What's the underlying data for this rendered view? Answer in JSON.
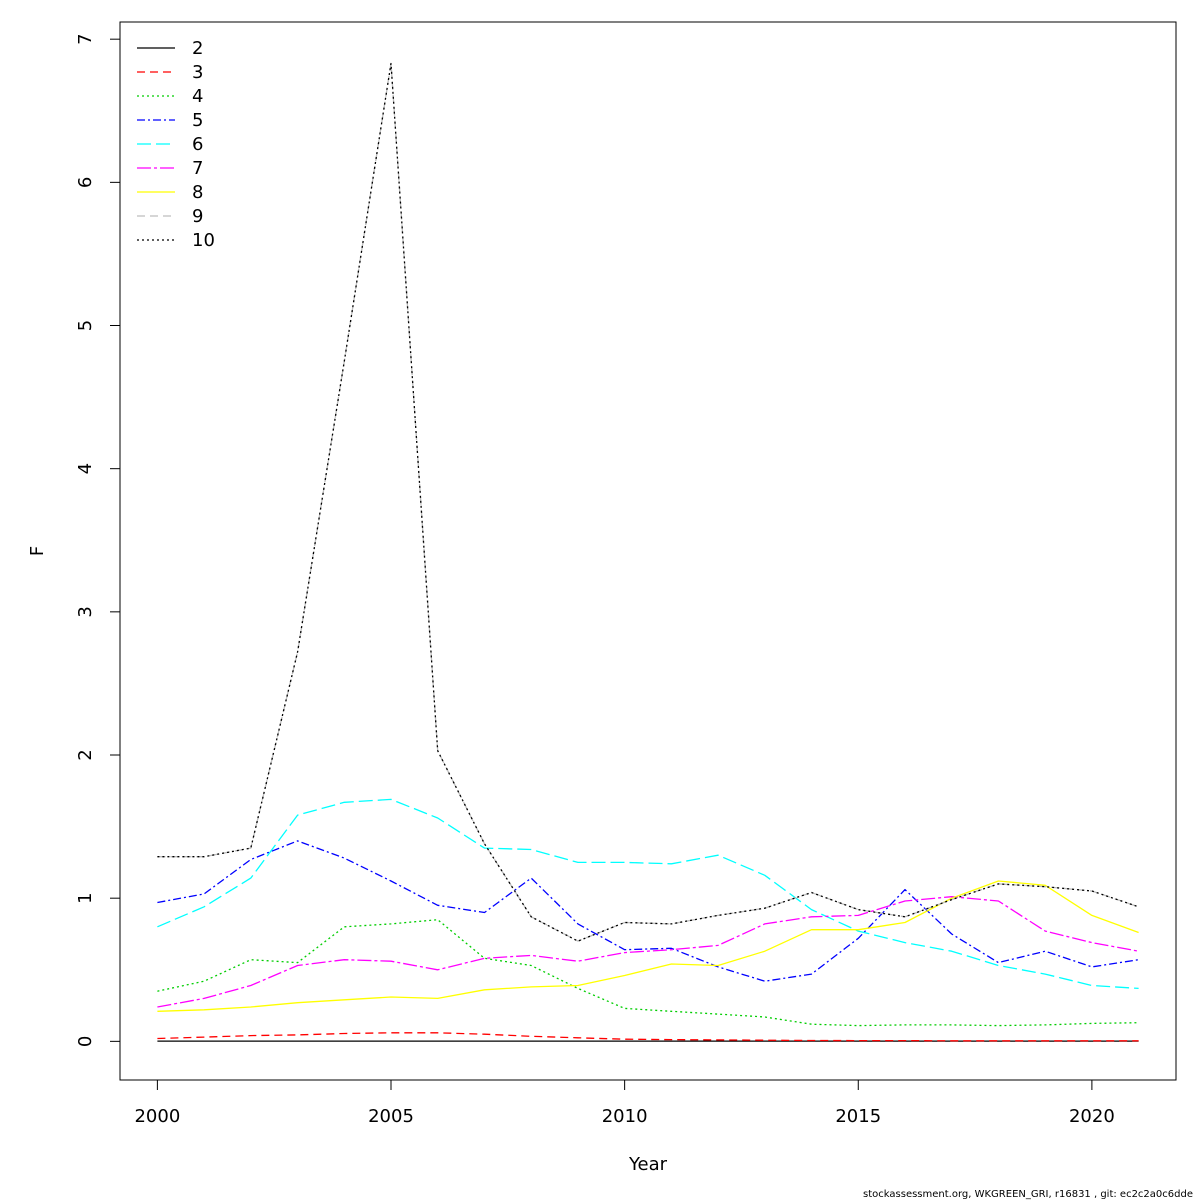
{
  "chart_data": {
    "type": "line",
    "xlabel": "Year",
    "ylabel": "F",
    "xlim": [
      1999.2,
      2021.8
    ],
    "ylim": [
      -0.27,
      7.12
    ],
    "x_ticks": [
      2000,
      2005,
      2010,
      2015,
      2020
    ],
    "y_ticks": [
      0,
      1,
      2,
      3,
      4,
      5,
      6,
      7
    ],
    "grid": false,
    "legend_position": "top-left",
    "x": [
      2000,
      2001,
      2002,
      2003,
      2004,
      2005,
      2006,
      2007,
      2008,
      2009,
      2010,
      2011,
      2012,
      2013,
      2014,
      2015,
      2016,
      2017,
      2018,
      2019,
      2020,
      2021
    ],
    "series": [
      {
        "name": "2",
        "color": "#000000",
        "dash": "",
        "values": [
          0.002,
          0.002,
          0.002,
          0.002,
          0.002,
          0.002,
          0.002,
          0.002,
          0.002,
          0.002,
          0.002,
          0.002,
          0.002,
          0.002,
          0.002,
          0.002,
          0.002,
          0.002,
          0.002,
          0.002,
          0.002,
          0.002
        ]
      },
      {
        "name": "3",
        "color": "#ff0000",
        "dash": "8,5",
        "values": [
          0.02,
          0.03,
          0.04,
          0.045,
          0.055,
          0.06,
          0.06,
          0.05,
          0.035,
          0.025,
          0.015,
          0.012,
          0.01,
          0.008,
          0.006,
          0.005,
          0.005,
          0.004,
          0.004,
          0.004,
          0.004,
          0.004
        ]
      },
      {
        "name": "4",
        "color": "#00cd00",
        "dash": "2,3",
        "values": [
          0.35,
          0.42,
          0.57,
          0.55,
          0.8,
          0.82,
          0.85,
          0.58,
          0.53,
          0.37,
          0.23,
          0.21,
          0.19,
          0.17,
          0.12,
          0.11,
          0.115,
          0.115,
          0.11,
          0.115,
          0.125,
          0.13
        ]
      },
      {
        "name": "5",
        "color": "#0000ff",
        "dash": "8,3,2,3",
        "values": [
          0.97,
          1.03,
          1.27,
          1.4,
          1.28,
          1.12,
          0.95,
          0.9,
          1.14,
          0.82,
          0.64,
          0.65,
          0.52,
          0.42,
          0.47,
          0.72,
          1.06,
          0.75,
          0.55,
          0.63,
          0.52,
          0.57
        ]
      },
      {
        "name": "6",
        "color": "#00ffff",
        "dash": "14,5",
        "values": [
          0.8,
          0.94,
          1.14,
          1.58,
          1.67,
          1.69,
          1.56,
          1.35,
          1.34,
          1.25,
          1.25,
          1.24,
          1.3,
          1.16,
          0.92,
          0.77,
          0.69,
          0.63,
          0.53,
          0.47,
          0.39,
          0.37
        ]
      },
      {
        "name": "7",
        "color": "#ff00ff",
        "dash": "14,3,3,3",
        "values": [
          0.24,
          0.3,
          0.39,
          0.53,
          0.57,
          0.56,
          0.5,
          0.58,
          0.6,
          0.56,
          0.62,
          0.64,
          0.67,
          0.82,
          0.87,
          0.88,
          0.98,
          1.01,
          0.98,
          0.77,
          0.69,
          0.63
        ]
      },
      {
        "name": "8",
        "color": "#ffff00",
        "dash": "",
        "values": [
          0.21,
          0.22,
          0.24,
          0.27,
          0.29,
          0.31,
          0.3,
          0.36,
          0.38,
          0.39,
          0.46,
          0.54,
          0.53,
          0.63,
          0.78,
          0.78,
          0.83,
          1.0,
          1.12,
          1.09,
          0.88,
          0.76
        ]
      },
      {
        "name": "9",
        "color": "#bebebe",
        "dash": "8,5",
        "values": [
          1.29,
          1.29,
          1.35,
          2.72,
          4.75,
          6.83,
          2.03,
          1.38,
          0.87,
          0.7,
          0.83,
          0.82,
          0.88,
          0.93,
          1.04,
          0.92,
          0.87,
          0.99,
          1.1,
          1.08,
          1.05,
          0.94
        ]
      },
      {
        "name": "10",
        "color": "#000000",
        "dash": "2,3",
        "values": [
          1.29,
          1.29,
          1.35,
          2.72,
          4.75,
          6.83,
          2.03,
          1.38,
          0.87,
          0.7,
          0.83,
          0.82,
          0.88,
          0.93,
          1.04,
          0.92,
          0.87,
          0.99,
          1.1,
          1.08,
          1.05,
          0.94
        ]
      }
    ],
    "annotations": [
      "stockassessment.org, WKGREEN_GRI, r16831 , git: ec2c2a0c6dde"
    ]
  }
}
